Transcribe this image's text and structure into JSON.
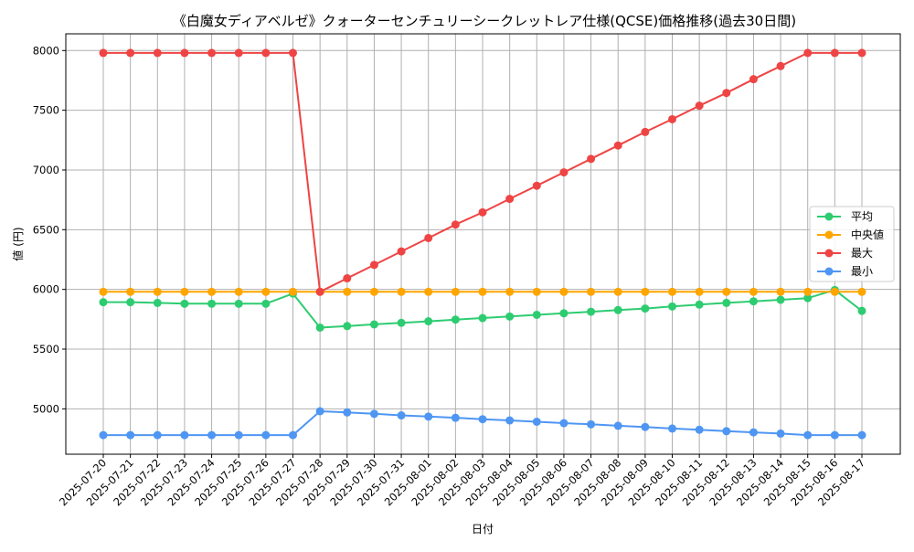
{
  "chart_data": {
    "type": "line",
    "title": "《白魔女ディアベルゼ》クォーターセンチュリーシークレットレア仕様(QCSE)価格推移(過去30日間)",
    "xlabel": "日付",
    "ylabel": "値 (円)",
    "ylim": [
      4620,
      8140
    ],
    "yticks": [
      5000,
      5500,
      6000,
      6500,
      7000,
      7500,
      8000
    ],
    "grid": true,
    "legend_position": "center-right",
    "categories": [
      "2025-07-20",
      "2025-07-21",
      "2025-07-22",
      "2025-07-23",
      "2025-07-24",
      "2025-07-25",
      "2025-07-26",
      "2025-07-27",
      "2025-07-28",
      "2025-07-29",
      "2025-07-30",
      "2025-07-31",
      "2025-08-01",
      "2025-08-02",
      "2025-08-03",
      "2025-08-04",
      "2025-08-05",
      "2025-08-06",
      "2025-08-07",
      "2025-08-08",
      "2025-08-09",
      "2025-08-10",
      "2025-08-11",
      "2025-08-12",
      "2025-08-13",
      "2025-08-14",
      "2025-08-15",
      "2025-08-16",
      "2025-08-17"
    ],
    "series": [
      {
        "name": "平均",
        "color": "#2ecc71",
        "values": [
          5893,
          5893,
          5887,
          5880,
          5880,
          5880,
          5880,
          5965,
          5680,
          5693,
          5707,
          5720,
          5733,
          5747,
          5760,
          5773,
          5787,
          5800,
          5813,
          5827,
          5840,
          5857,
          5873,
          5887,
          5900,
          5913,
          5927,
          5995,
          5820
        ]
      },
      {
        "name": "中央値",
        "color": "#ffa500",
        "values": [
          5980,
          5980,
          5980,
          5980,
          5980,
          5980,
          5980,
          5980,
          5980,
          5980,
          5980,
          5980,
          5980,
          5980,
          5980,
          5980,
          5980,
          5980,
          5980,
          5980,
          5980,
          5980,
          5980,
          5980,
          5980,
          5980,
          5980,
          5980,
          5980
        ]
      },
      {
        "name": "最大",
        "color": "#ef4444",
        "values": [
          7980,
          7980,
          7980,
          7980,
          7980,
          7980,
          7980,
          7980,
          5980,
          6093,
          6205,
          6318,
          6430,
          6543,
          6645,
          6758,
          6868,
          6980,
          7093,
          7205,
          7318,
          7425,
          7538,
          7645,
          7760,
          7870,
          7980,
          7980,
          7980
        ]
      },
      {
        "name": "最小",
        "color": "#4f96f3",
        "values": [
          4780,
          4780,
          4780,
          4780,
          4780,
          4780,
          4780,
          4780,
          4980,
          4970,
          4958,
          4945,
          4935,
          4925,
          4913,
          4903,
          4892,
          4880,
          4870,
          4858,
          4848,
          4835,
          4825,
          4813,
          4803,
          4793,
          4780,
          4780,
          4780
        ]
      }
    ]
  }
}
